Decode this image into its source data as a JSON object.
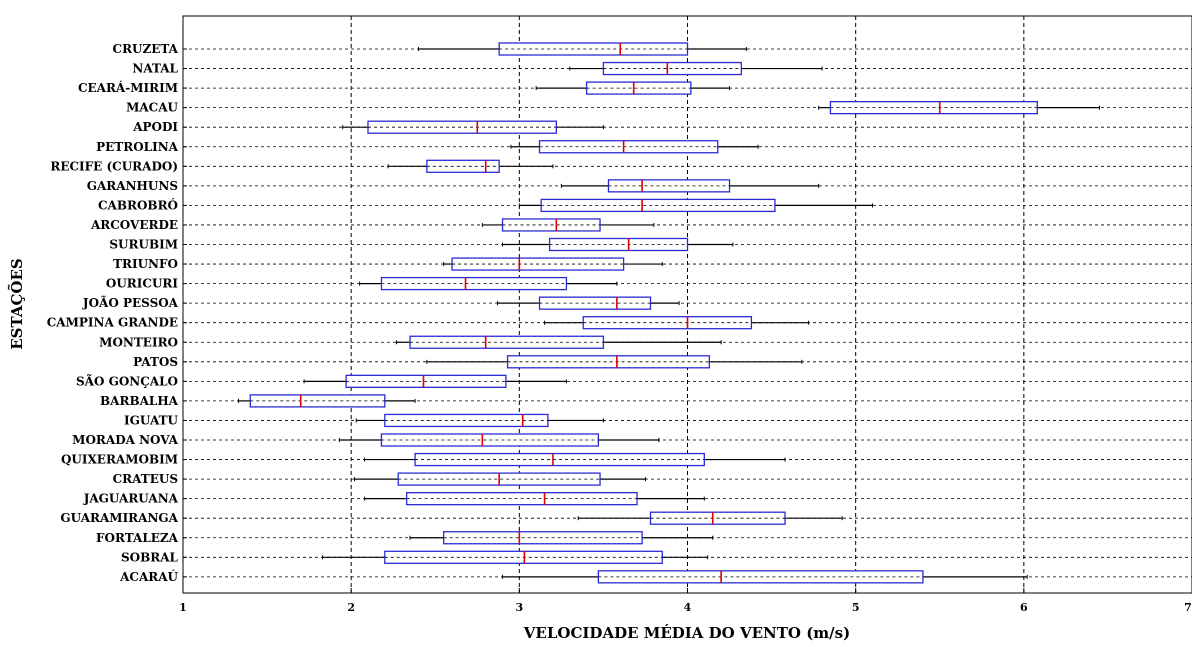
{
  "chart_data": {
    "type": "boxplot",
    "orientation": "horizontal",
    "xlabel": "VELOCIDADE MÉDIA DO VENTO (m/s)",
    "ylabel": "ESTAÇÕES",
    "xlim": [
      1,
      7
    ],
    "xticks": [
      1,
      2,
      3,
      4,
      5,
      6,
      7
    ],
    "grid": "vertical dashed lines at major ticks",
    "colors": {
      "box": "#2b2bd6",
      "median": "#e00000",
      "whisker": "#000000",
      "grid": "#000000"
    },
    "categories": [
      "CRUZETA",
      "NATAL",
      "CEARÁ-MIRIM",
      "MACAU",
      "APODI",
      "PETROLINA",
      "RECIFE (CURADO)",
      "GARANHUNS",
      "CABROBRÓ",
      "ARCOVERDE",
      "SURUBIM",
      "TRIUNFO",
      "OURICURI",
      "JOÃO PESSOA",
      "CAMPINA GRANDE",
      "MONTEIRO",
      "PATOS",
      "SÃO GONÇALO",
      "BARBALHA",
      "IGUATU",
      "MORADA NOVA",
      "QUIXERAMOBIM",
      "CRATEUS",
      "JAGUARUANA",
      "GUARAMIRANGA",
      "FORTALEZA",
      "SOBRAL",
      "ACARAÚ"
    ],
    "boxes": [
      {
        "min": 2.4,
        "q1": 2.88,
        "median": 3.6,
        "q3": 4.0,
        "max": 4.35
      },
      {
        "min": 3.3,
        "q1": 3.5,
        "median": 3.88,
        "q3": 4.32,
        "max": 4.8
      },
      {
        "min": 3.1,
        "q1": 3.4,
        "median": 3.68,
        "q3": 4.02,
        "max": 4.25
      },
      {
        "min": 4.78,
        "q1": 4.85,
        "median": 5.5,
        "q3": 6.08,
        "max": 6.45
      },
      {
        "min": 1.95,
        "q1": 2.1,
        "median": 2.75,
        "q3": 3.22,
        "max": 3.5
      },
      {
        "min": 2.95,
        "q1": 3.12,
        "median": 3.62,
        "q3": 4.18,
        "max": 4.42
      },
      {
        "min": 2.22,
        "q1": 2.45,
        "median": 2.8,
        "q3": 2.88,
        "max": 3.2
      },
      {
        "min": 3.25,
        "q1": 3.53,
        "median": 3.73,
        "q3": 4.25,
        "max": 4.78
      },
      {
        "min": 3.0,
        "q1": 3.13,
        "median": 3.73,
        "q3": 4.52,
        "max": 5.1
      },
      {
        "min": 2.78,
        "q1": 2.9,
        "median": 3.22,
        "q3": 3.48,
        "max": 3.8
      },
      {
        "min": 2.9,
        "q1": 3.18,
        "median": 3.65,
        "q3": 4.0,
        "max": 4.27
      },
      {
        "min": 2.55,
        "q1": 2.6,
        "median": 3.0,
        "q3": 3.62,
        "max": 3.85
      },
      {
        "min": 2.05,
        "q1": 2.18,
        "median": 2.68,
        "q3": 3.28,
        "max": 3.58
      },
      {
        "min": 2.87,
        "q1": 3.12,
        "median": 3.58,
        "q3": 3.78,
        "max": 3.95
      },
      {
        "min": 3.15,
        "q1": 3.38,
        "median": 4.0,
        "q3": 4.38,
        "max": 4.72
      },
      {
        "min": 2.27,
        "q1": 2.35,
        "median": 2.8,
        "q3": 3.5,
        "max": 4.2
      },
      {
        "min": 2.45,
        "q1": 2.93,
        "median": 3.58,
        "q3": 4.13,
        "max": 4.68
      },
      {
        "min": 1.72,
        "q1": 1.97,
        "median": 2.43,
        "q3": 2.92,
        "max": 3.28
      },
      {
        "min": 1.33,
        "q1": 1.4,
        "median": 1.7,
        "q3": 2.2,
        "max": 2.38
      },
      {
        "min": 2.03,
        "q1": 2.2,
        "median": 3.02,
        "q3": 3.17,
        "max": 3.5
      },
      {
        "min": 1.93,
        "q1": 2.18,
        "median": 2.78,
        "q3": 3.47,
        "max": 3.83
      },
      {
        "min": 2.08,
        "q1": 2.38,
        "median": 3.2,
        "q3": 4.1,
        "max": 4.58
      },
      {
        "min": 2.02,
        "q1": 2.28,
        "median": 2.88,
        "q3": 3.48,
        "max": 3.75
      },
      {
        "min": 2.08,
        "q1": 2.33,
        "median": 3.15,
        "q3": 3.7,
        "max": 4.1
      },
      {
        "min": 3.35,
        "q1": 3.78,
        "median": 4.15,
        "q3": 4.58,
        "max": 4.92
      },
      {
        "min": 2.35,
        "q1": 2.55,
        "median": 3.0,
        "q3": 3.73,
        "max": 4.15
      },
      {
        "min": 1.83,
        "q1": 2.2,
        "median": 3.03,
        "q3": 3.85,
        "max": 4.12
      },
      {
        "min": 2.9,
        "q1": 3.47,
        "median": 4.2,
        "q3": 5.4,
        "max": 6.02
      }
    ]
  }
}
